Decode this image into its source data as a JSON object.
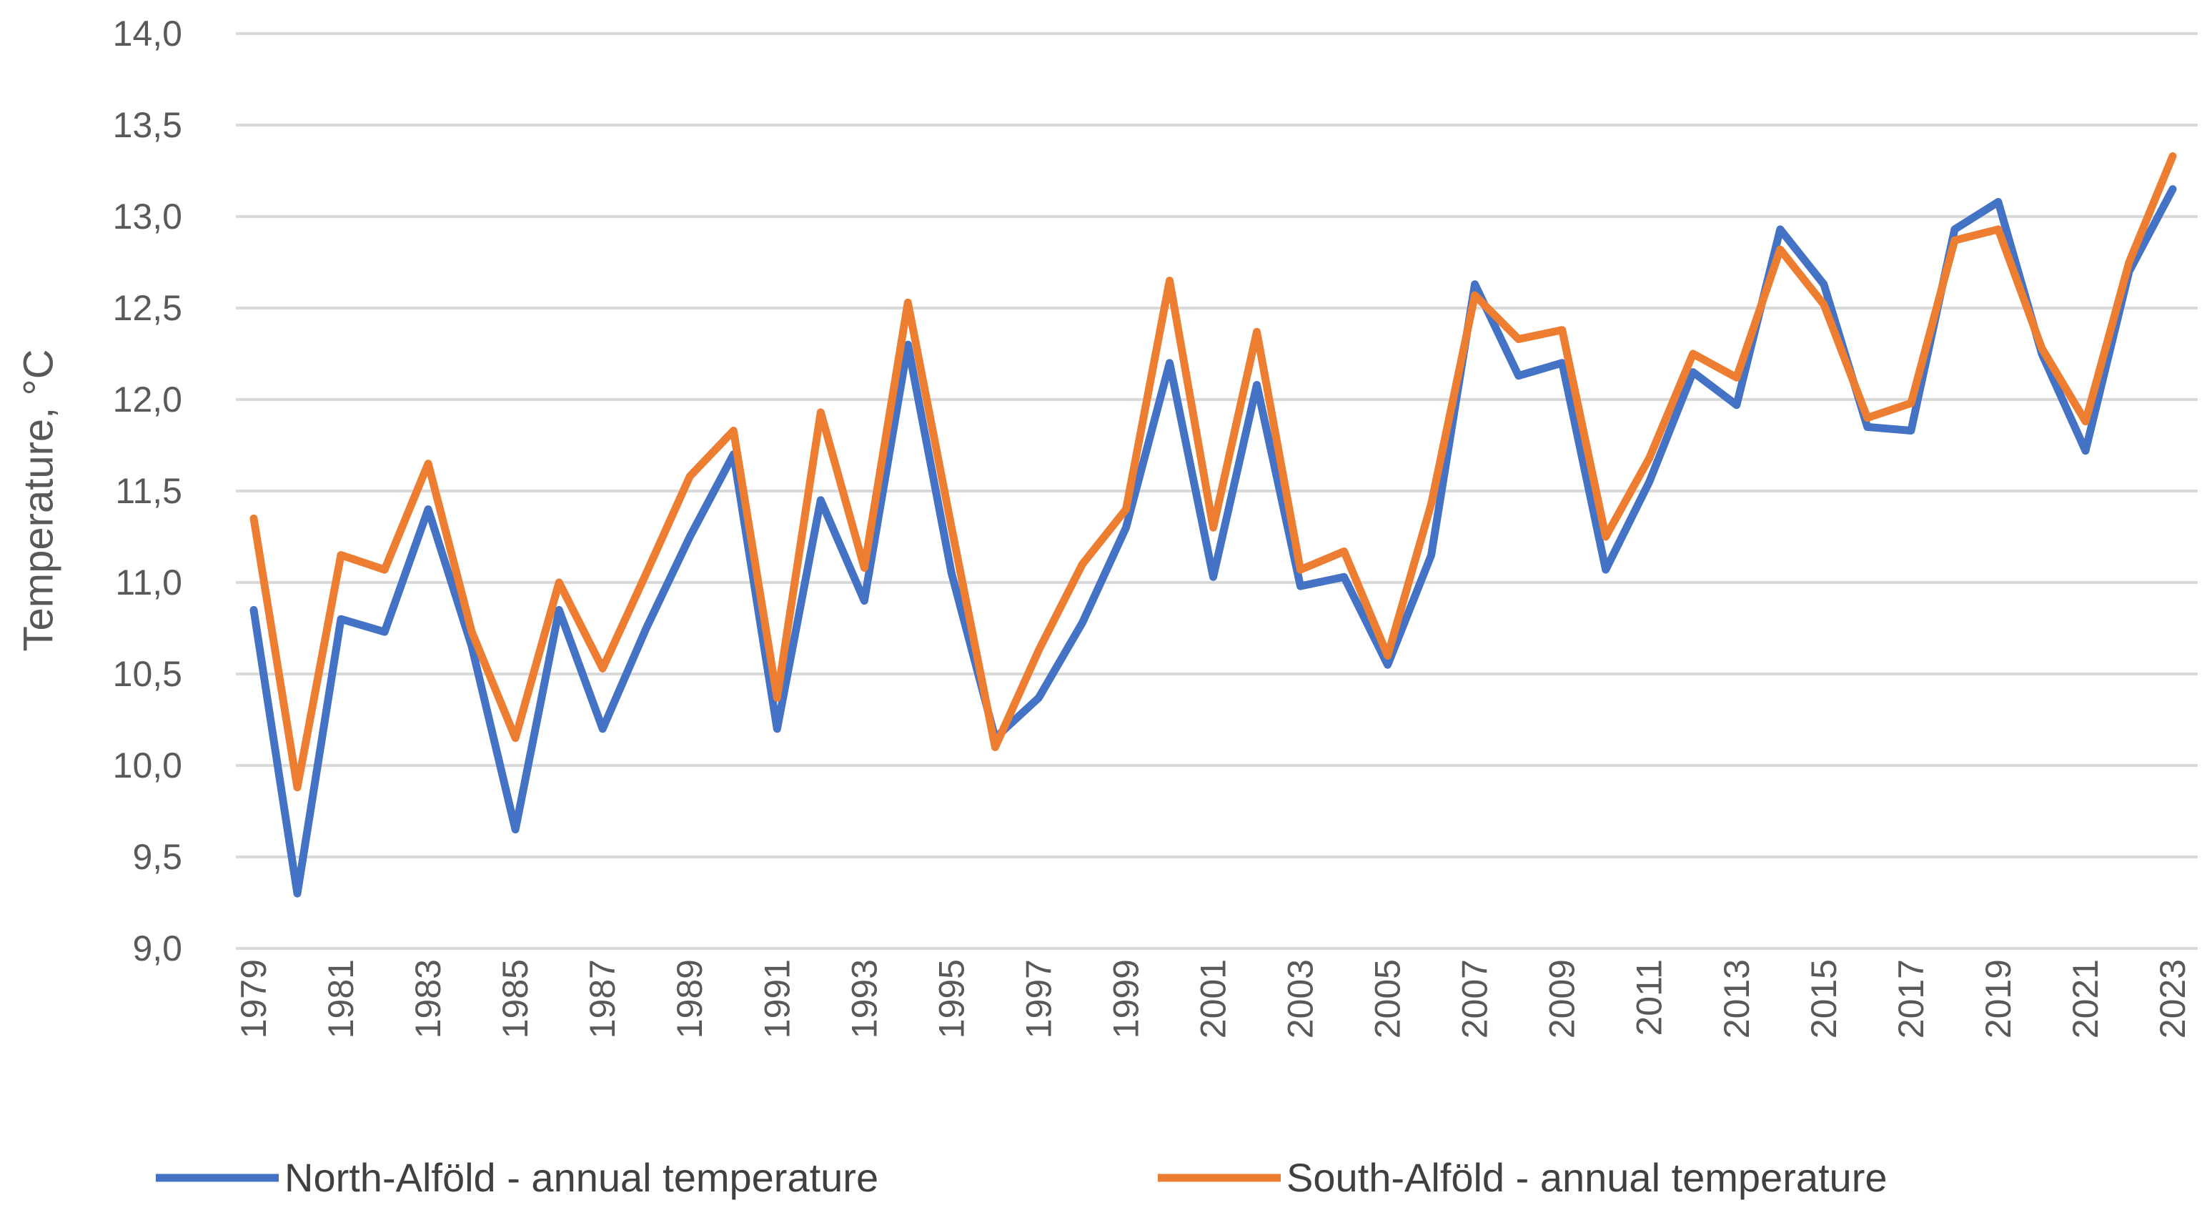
{
  "chart_data": {
    "type": "line",
    "title": "",
    "xlabel": "",
    "ylabel": "Temperature, °C",
    "ylim": [
      9.0,
      14.0
    ],
    "yticks": [
      "9,0",
      "9,5",
      "10,0",
      "10,5",
      "11,0",
      "11,5",
      "12,0",
      "12,5",
      "13,0",
      "13,5",
      "14,0"
    ],
    "xtick_labels": [
      "1979",
      "1981",
      "1983",
      "1985",
      "1987",
      "1989",
      "1991",
      "1993",
      "1995",
      "1997",
      "1999",
      "2001",
      "2003",
      "2005",
      "2007",
      "2009",
      "2011",
      "2013",
      "2015",
      "2017",
      "2019",
      "2021",
      "2023"
    ],
    "grid": true,
    "legend_position": "bottom",
    "x": [
      1979,
      1980,
      1981,
      1982,
      1983,
      1984,
      1985,
      1986,
      1987,
      1988,
      1989,
      1990,
      1991,
      1992,
      1993,
      1994,
      1995,
      1996,
      1997,
      1998,
      1999,
      2000,
      2001,
      2002,
      2003,
      2004,
      2005,
      2006,
      2007,
      2008,
      2009,
      2010,
      2011,
      2012,
      2013,
      2014,
      2015,
      2016,
      2017,
      2018,
      2019,
      2020,
      2021,
      2022,
      2023
    ],
    "series": [
      {
        "name": "North-Alföld - annual temperature",
        "color": "#4472C4",
        "values": [
          10.85,
          9.3,
          10.8,
          10.73,
          11.4,
          10.65,
          9.65,
          10.85,
          10.2,
          10.75,
          11.25,
          11.7,
          10.2,
          11.45,
          10.9,
          12.3,
          11.05,
          10.15,
          10.37,
          10.78,
          11.3,
          12.2,
          11.03,
          12.08,
          10.98,
          11.03,
          10.55,
          11.15,
          12.63,
          12.13,
          12.2,
          11.07,
          11.55,
          12.15,
          11.97,
          12.93,
          12.63,
          11.85,
          11.83,
          12.93,
          13.08,
          12.25,
          11.72,
          12.7,
          13.15
        ]
      },
      {
        "name": "South-Alföld - annual temperature",
        "color": "#ED7D31",
        "values": [
          11.35,
          9.88,
          11.15,
          11.07,
          11.65,
          10.73,
          10.15,
          11.0,
          10.53,
          11.05,
          11.58,
          11.83,
          10.37,
          11.93,
          11.08,
          12.53,
          11.3,
          10.1,
          10.63,
          11.1,
          11.4,
          12.65,
          11.3,
          12.37,
          11.07,
          11.17,
          10.6,
          11.43,
          12.57,
          12.33,
          12.38,
          11.25,
          11.68,
          12.25,
          12.12,
          12.82,
          12.52,
          11.9,
          11.98,
          12.87,
          12.93,
          12.28,
          11.88,
          12.75,
          13.33
        ]
      }
    ]
  }
}
